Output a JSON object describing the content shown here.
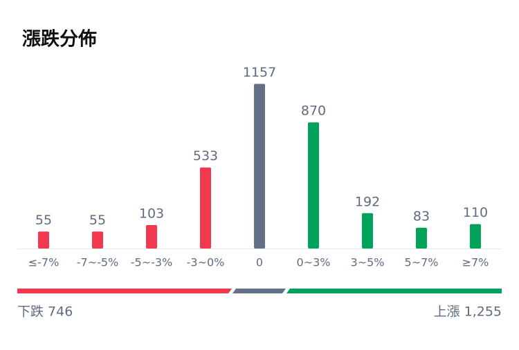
{
  "chart_data": {
    "type": "bar",
    "title": "漲跌分佈",
    "categories": [
      "≤-7%",
      "-7~-5%",
      "-5~-3%",
      "-3~0%",
      "0",
      "0~3%",
      "3~5%",
      "5~7%",
      "≥7%"
    ],
    "values": [
      55,
      55,
      103,
      533,
      1157,
      870,
      192,
      83,
      110
    ],
    "colors": [
      "#f0384f",
      "#f0384f",
      "#f0384f",
      "#f0384f",
      "#627088",
      "#00a25b",
      "#00a25b",
      "#00a25b",
      "#00a25b"
    ]
  },
  "summary": {
    "down": "下跌 746",
    "up": "上漲 1,255"
  }
}
